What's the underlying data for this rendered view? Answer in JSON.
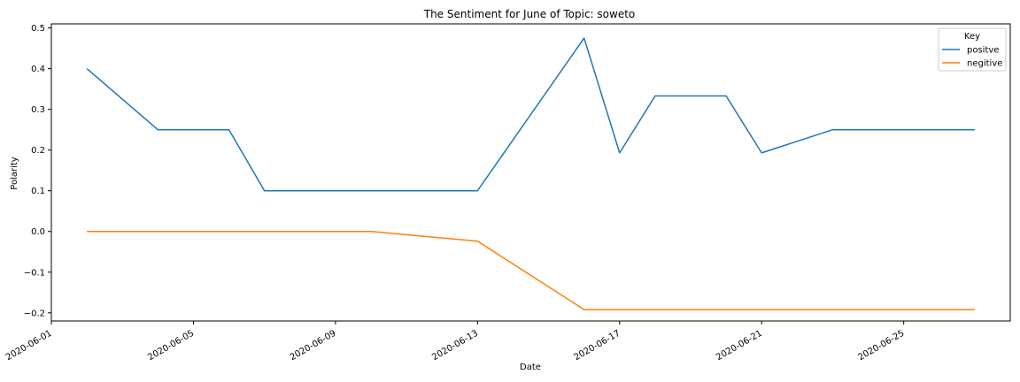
{
  "chart_data": {
    "type": "line",
    "title": "The Sentiment for June of Topic: soweto",
    "xlabel": "Date",
    "ylabel": "Polarity",
    "x_tick_labels": [
      "2020-06-01",
      "2020-06-05",
      "2020-06-09",
      "2020-06-13",
      "2020-06-17",
      "2020-06-21",
      "2020-06-25"
    ],
    "y_tick_labels": [
      "−0.2",
      "−0.1",
      "0.0",
      "0.1",
      "0.2",
      "0.3",
      "0.4",
      "0.5"
    ],
    "xlim": [
      "2020-06-01",
      "2020-06-28"
    ],
    "ylim": [
      -0.22,
      0.51
    ],
    "grid": false,
    "legend": {
      "title": "Key",
      "position": "top-right"
    },
    "series": [
      {
        "name": "positve",
        "color": "#1f77b4",
        "x": [
          "2020-06-02",
          "2020-06-04",
          "2020-06-06",
          "2020-06-07",
          "2020-06-10",
          "2020-06-13",
          "2020-06-16",
          "2020-06-17",
          "2020-06-18",
          "2020-06-20",
          "2020-06-21",
          "2020-06-23",
          "2020-06-27"
        ],
        "values": [
          0.4,
          0.25,
          0.25,
          0.1,
          0.1,
          0.1,
          0.475,
          0.193,
          0.333,
          0.333,
          0.193,
          0.25,
          0.25
        ]
      },
      {
        "name": "negitive",
        "color": "#ff7f0e",
        "x": [
          "2020-06-02",
          "2020-06-10",
          "2020-06-13",
          "2020-06-16",
          "2020-06-27"
        ],
        "values": [
          0.0,
          0.0,
          -0.024,
          -0.192,
          -0.192
        ]
      }
    ]
  }
}
